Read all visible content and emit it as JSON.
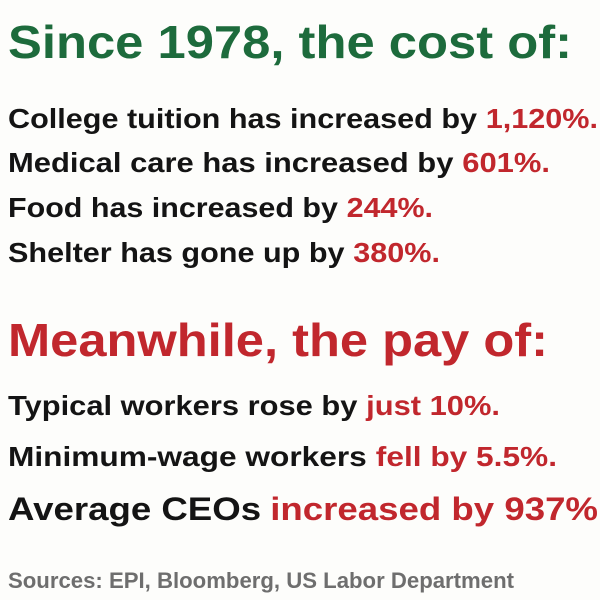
{
  "heading": "Since 1978, the cost of:",
  "cost_items": [
    {
      "text": "College tuition has increased by",
      "highlight": "1,120%."
    },
    {
      "text": "Medical care has increased by",
      "highlight": "601%."
    },
    {
      "text": "Food has increased by",
      "highlight": "244%."
    },
    {
      "text": "Shelter has gone up by",
      "highlight": "380%."
    }
  ],
  "pay_heading": "Meanwhile, the pay of:",
  "pay_items": [
    {
      "text": "Typical workers rose by",
      "highlight": "just 10%."
    },
    {
      "text": "Minimum-wage workers",
      "highlight": "fell by 5.5%."
    },
    {
      "text": "Average CEOs",
      "highlight": "increased by 937%"
    }
  ],
  "sources": "Sources: EPI, Bloomberg, US Labor Department"
}
